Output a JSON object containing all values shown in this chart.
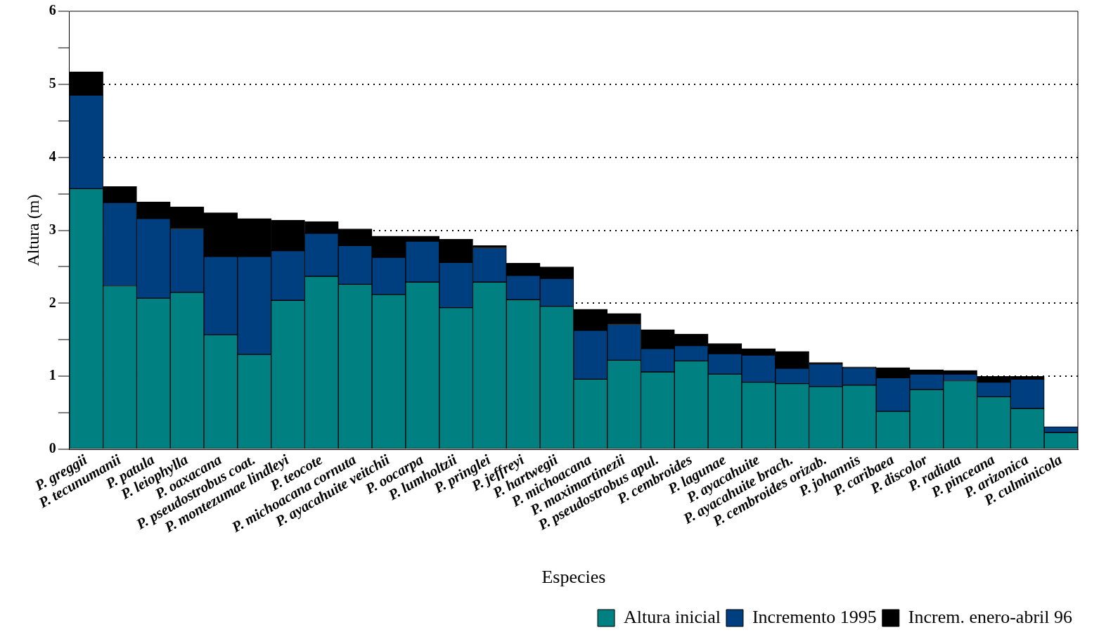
{
  "chart_data": {
    "type": "bar",
    "stacked": true,
    "xlabel": "Especies",
    "ylabel": "Altura (m)",
    "legend": "bottom right",
    "grid": "y",
    "line_style": "dotted",
    "categories": [
      "P. greggii",
      "P. tecunumanii",
      "P. patula",
      "P. leiophylla",
      "P. oaxacana",
      "P. pseudostrobus coat.",
      "P. montezumae lindleyi",
      "P. teocote",
      "P. michoacana cornuta",
      "P. ayacahuite veitchii",
      "P. oocarpa",
      "P. lumholtzii",
      "P. pringlei",
      "P. jeffreyi",
      "P. hartwegii",
      "P. michoacana",
      "P. maximartinezii",
      "P. pseudostrobus apul.",
      "P. cembroides",
      "P. lagunae",
      "P. ayacahuite",
      "P. ayacahuite brach.",
      "P. cembroides orizab.",
      "P. johannis",
      "P. caribaea",
      "P. discolor",
      "P. radiata",
      "P. pinceana",
      "P. arizonica",
      "P. culminicola"
    ],
    "ylim": [
      0,
      6
    ],
    "yticks": [
      0,
      {
        "value": 0.5,
        "label": null
      },
      1,
      {
        "value": 1.5,
        "label": null
      },
      2,
      {
        "value": 2.5,
        "label": null
      },
      3,
      {
        "value": 3.5,
        "label": null
      },
      4,
      {
        "value": 4.5,
        "label": null
      },
      5,
      {
        "value": 5.5,
        "label": null
      },
      6
    ],
    "series": [
      {
        "name": "Altura inicial",
        "color": "#008080",
        "values": [
          3.57,
          2.24,
          2.07,
          2.15,
          1.57,
          1.3,
          2.04,
          2.37,
          2.26,
          2.12,
          2.29,
          1.94,
          2.29,
          2.05,
          1.96,
          0.96,
          1.22,
          1.06,
          1.21,
          1.03,
          0.92,
          0.9,
          0.86,
          0.88,
          0.52,
          0.82,
          0.94,
          0.72,
          0.56,
          0.23
        ]
      },
      {
        "name": "Incremento 1995",
        "color": "#003f7f",
        "values": [
          1.28,
          1.14,
          1.09,
          0.87,
          1.07,
          1.34,
          0.68,
          0.59,
          0.53,
          0.51,
          0.56,
          0.62,
          0.47,
          0.33,
          0.38,
          0.67,
          0.49,
          0.32,
          0.21,
          0.28,
          0.37,
          0.21,
          0.31,
          0.24,
          0.46,
          0.21,
          0.09,
          0.2,
          0.4,
          0.08
        ]
      },
      {
        "name": "Increm. enero-abril 96",
        "color": "#000000",
        "values": [
          0.32,
          0.22,
          0.23,
          0.3,
          0.6,
          0.52,
          0.42,
          0.16,
          0.23,
          0.29,
          0.07,
          0.32,
          0.03,
          0.17,
          0.16,
          0.29,
          0.15,
          0.26,
          0.16,
          0.14,
          0.09,
          0.23,
          0.02,
          0.01,
          0.14,
          0.06,
          0.05,
          0.08,
          0.04,
          0
        ]
      }
    ]
  }
}
